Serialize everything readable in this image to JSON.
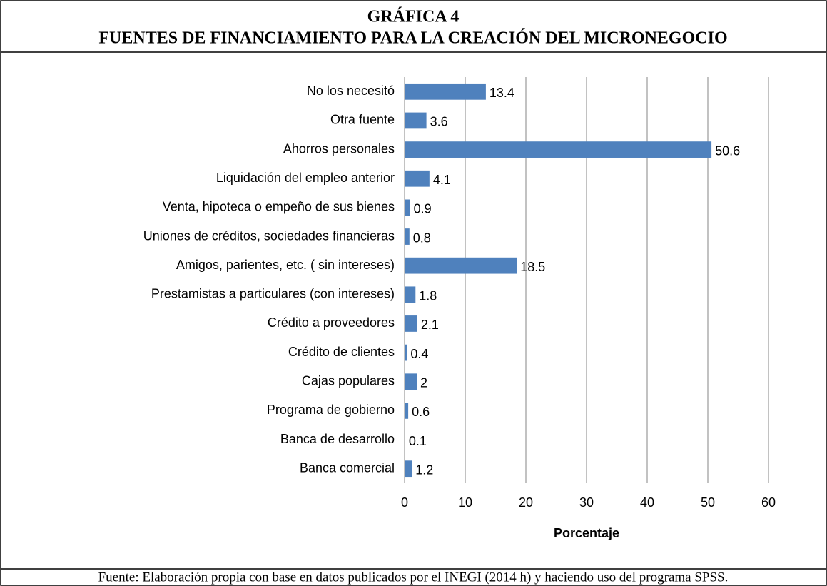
{
  "chart_data": {
    "type": "hbar",
    "title": "GRÁFICA 4",
    "subtitle": "FUENTES DE FINANCIAMIENTO PARA LA CREACIÓN DEL MICRONEGOCIO",
    "categories": [
      "No los necesitó",
      "Otra fuente",
      "Ahorros personales",
      "Liquidación del empleo anterior",
      "Venta, hipoteca o empeño de sus bienes",
      "Uniones de créditos, sociedades financieras",
      "Amigos, parientes, etc. ( sin intereses)",
      "Prestamistas a particulares (con intereses)",
      "Crédito a proveedores",
      "Crédito de clientes",
      "Cajas populares",
      "Programa de gobierno",
      "Banca de desarrollo",
      "Banca comercial"
    ],
    "values": [
      13.4,
      3.6,
      50.6,
      4.1,
      0.9,
      0.8,
      18.5,
      1.8,
      2.1,
      0.4,
      2,
      0.6,
      0.1,
      1.2
    ],
    "color": "#4f81bd",
    "xlim": [
      0,
      60
    ],
    "xticks": [
      0,
      10,
      20,
      30,
      40,
      50,
      60
    ],
    "xlabel": "Porcentaje",
    "grid": true,
    "source": "Fuente: Elaboración propia con base en datos publicados por el INEGI (2014 h) y haciendo uso del programa SPSS."
  }
}
